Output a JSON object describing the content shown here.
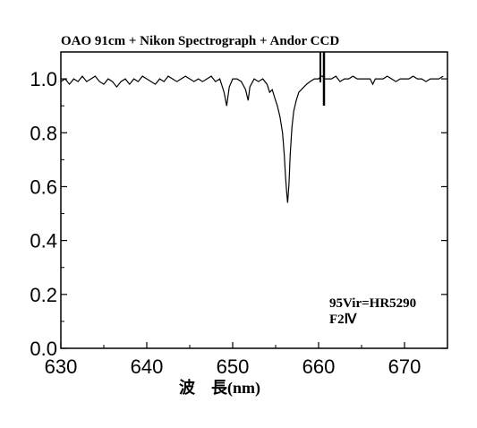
{
  "chart_data": {
    "type": "line",
    "title": "OAO 91cm + Nikon Spectrograph + Andor CCD",
    "xlabel": "波　長(nm)",
    "ylabel": "",
    "xlim": [
      630,
      675
    ],
    "ylim": [
      0.0,
      1.1
    ],
    "x_ticks": [
      630,
      640,
      650,
      660,
      670
    ],
    "x_tick_labels": [
      "630",
      "640",
      "650",
      "660",
      "670"
    ],
    "y_ticks": [
      0.0,
      0.2,
      0.4,
      0.6,
      0.8,
      1.0
    ],
    "y_tick_labels": [
      "0.0",
      "0.2",
      "0.4",
      "0.6",
      "0.8",
      "1.0"
    ],
    "annotations": [
      "95Vir=HR5290",
      "F2Ⅳ"
    ],
    "grid": false,
    "series": [
      {
        "x": [
          630.0,
          630.5,
          631.0,
          631.5,
          632.0,
          632.5,
          633.0,
          633.5,
          634.0,
          634.5,
          635.0,
          635.5,
          636.0,
          636.5,
          637.0,
          637.5,
          638.0,
          638.5,
          639.0,
          639.5,
          640.0,
          640.5,
          641.0,
          641.5,
          642.0,
          642.5,
          643.0,
          643.5,
          644.0,
          644.5,
          645.0,
          645.5,
          646.0,
          646.5,
          647.0,
          647.5,
          648.0,
          648.5,
          649.0,
          649.3,
          649.6,
          650.0,
          650.5,
          651.0,
          651.5,
          651.8,
          652.0,
          652.5,
          653.0,
          653.5,
          654.0,
          654.3,
          654.6,
          654.9,
          655.2,
          655.5,
          655.8,
          656.0,
          656.15,
          656.28,
          656.4,
          656.55,
          656.7,
          656.9,
          657.1,
          657.4,
          657.7,
          658.0,
          658.3,
          658.6,
          659.0,
          659.5,
          660.0,
          660.3,
          660.5,
          660.6,
          660.8,
          661.0,
          661.5,
          662.0,
          662.5,
          663.0,
          663.5,
          664.0,
          664.5,
          665.0,
          665.5,
          666.0,
          666.3,
          666.6,
          667.0,
          667.5,
          668.0,
          668.5,
          669.0,
          669.5,
          670.0,
          670.5,
          671.0,
          671.5,
          672.0,
          672.5,
          673.0,
          673.5,
          674.0,
          674.5
        ],
        "values": [
          0.99,
          1.0,
          0.98,
          1.0,
          0.99,
          1.01,
          0.99,
          1.0,
          1.01,
          0.99,
          0.98,
          1.0,
          0.99,
          0.97,
          0.99,
          1.0,
          0.98,
          1.0,
          0.99,
          1.01,
          1.0,
          0.99,
          0.98,
          1.0,
          0.99,
          1.01,
          1.0,
          0.99,
          1.0,
          1.01,
          1.0,
          0.99,
          1.0,
          0.99,
          1.0,
          1.01,
          0.99,
          1.0,
          0.95,
          0.9,
          0.97,
          1.0,
          1.0,
          0.99,
          0.96,
          0.92,
          0.97,
          1.0,
          0.99,
          1.0,
          0.98,
          0.95,
          0.96,
          0.93,
          0.9,
          0.86,
          0.8,
          0.72,
          0.64,
          0.58,
          0.54,
          0.61,
          0.72,
          0.82,
          0.88,
          0.92,
          0.95,
          0.96,
          0.97,
          0.98,
          0.99,
          1.0,
          1.0,
          1.01,
          1.01,
          1.0,
          1.0,
          1.0,
          1.0,
          1.01,
          0.99,
          1.0,
          1.0,
          1.01,
          1.0,
          1.0,
          1.0,
          1.0,
          0.98,
          1.0,
          1.0,
          1.0,
          1.01,
          1.0,
          0.99,
          1.0,
          1.0,
          1.0,
          1.01,
          1.0,
          1.0,
          0.99,
          1.0,
          1.0,
          1.0,
          1.01
        ]
      }
    ]
  }
}
